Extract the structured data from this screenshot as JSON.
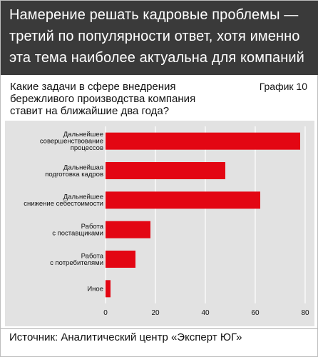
{
  "header": {
    "title_lines": [
      "Намерение решать кадровые проблемы —",
      "третий по популярности ответ, хотя именно",
      "эта тема наиболее актуальна для компаний"
    ]
  },
  "question": {
    "lines": [
      "Какие задачи в сфере внедрения",
      "бережливого производства компания",
      "ставит на ближайшие два года?"
    ]
  },
  "graph_label": "График 10",
  "source": "Источник: Аналитический центр «Эксперт ЮГ»",
  "colors": {
    "header_bg": "#3a3a3a",
    "bar": "#e30613",
    "panel": "#e2e2e2",
    "grid": "#ffffff"
  },
  "chart_data": {
    "type": "bar",
    "orientation": "horizontal",
    "categories": [
      [
        "Дальнейшее",
        "совершенствование",
        "процессов"
      ],
      [
        "Дальнейшая",
        "подготовка кадров"
      ],
      [
        "Дальнейшее",
        "снижение себестоимости"
      ],
      [
        "Работа",
        "с поставщиками"
      ],
      [
        "Работа",
        "с потребителями"
      ],
      [
        "Иное"
      ]
    ],
    "values": [
      78,
      48,
      62,
      18,
      12,
      2
    ],
    "xlim": [
      0,
      80
    ],
    "xticks": [
      "0",
      "20",
      "40",
      "60",
      "80"
    ],
    "grid": true,
    "title": "",
    "xlabel": "",
    "ylabel": ""
  }
}
